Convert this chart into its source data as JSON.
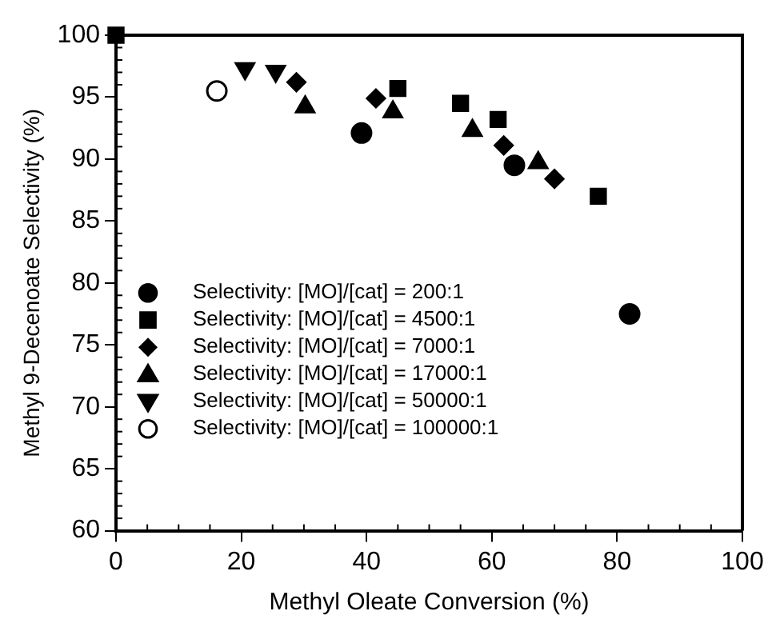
{
  "chart_data": {
    "type": "scatter",
    "xlabel": "Methyl Oleate Conversion (%)",
    "ylabel": "Methyl 9-Decenoate Selectivity (%)",
    "xlim": [
      0,
      100
    ],
    "xticks": [
      0,
      20,
      40,
      60,
      80,
      100
    ],
    "ylim": [
      60,
      100
    ],
    "yticks": [
      60,
      65,
      70,
      75,
      80,
      85,
      90,
      95,
      100
    ],
    "grid": false,
    "legend": "left",
    "series": [
      {
        "name": "Selectivity: [MO]/[cat] = 200:1",
        "color": "#000000",
        "marker": "circle",
        "x": [
          39.2,
          63.6,
          82
        ],
        "values": [
          92.1,
          89.5,
          77.5
        ]
      },
      {
        "name": "Selectivity: [MO]/[cat] = 4500:1",
        "color": "#000000",
        "marker": "square",
        "x": [
          0,
          45,
          55,
          61,
          77
        ],
        "values": [
          100,
          95.7,
          94.5,
          93.2,
          87
        ]
      },
      {
        "name": "Selectivity: [MO]/[cat] = 7000:1",
        "color": "#000000",
        "marker": "diamond",
        "x": [
          28.8,
          41.5,
          61.9,
          70
        ],
        "values": [
          96.2,
          94.9,
          91.1,
          88.4
        ]
      },
      {
        "name": "Selectivity: [MO]/[cat] = 17000:1",
        "color": "#000000",
        "marker": "triangle",
        "x": [
          30.2,
          44.2,
          56.9,
          67.4
        ],
        "values": [
          94.2,
          93.8,
          92.3,
          89.7
        ]
      },
      {
        "name": "Selectivity: [MO]/[cat] = 50000:1",
        "color": "#000000",
        "marker": "triangle-down",
        "x": [
          20.6,
          25.5
        ],
        "values": [
          97.3,
          97.1
        ]
      },
      {
        "name": "Selectivity: [MO]/[cat] = 100000:1",
        "color": "#ffffff",
        "marker": "circle",
        "x": [
          16.1
        ],
        "values": [
          95.5
        ]
      }
    ]
  }
}
